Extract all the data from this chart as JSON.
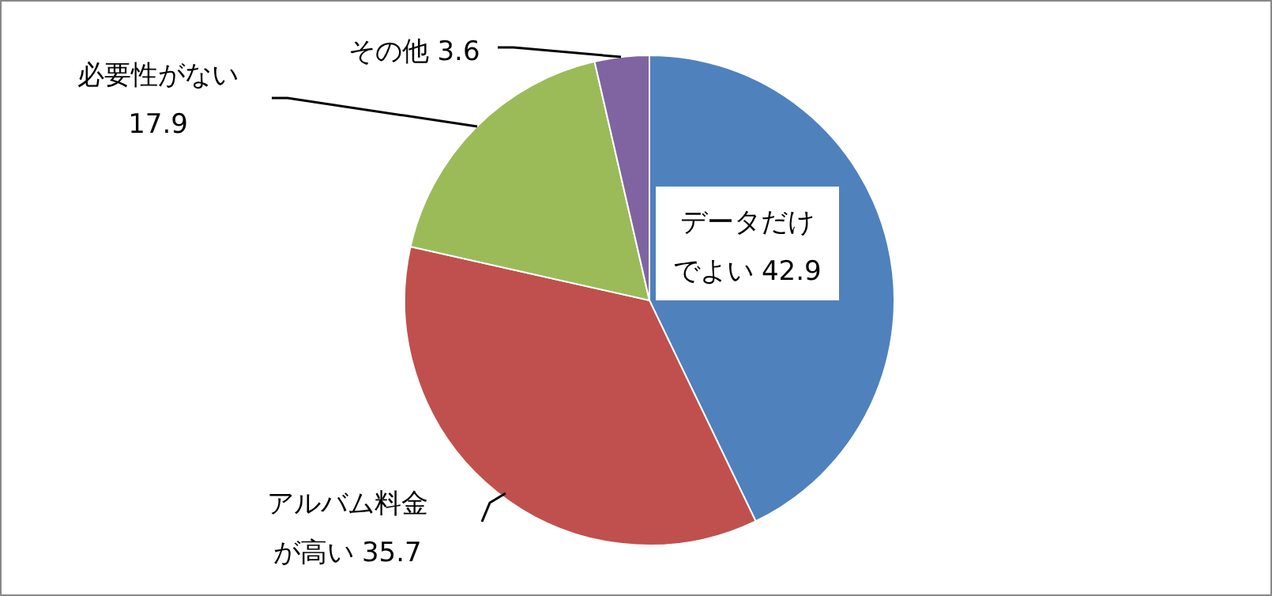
{
  "chart_data": {
    "type": "pie",
    "categories": [
      "データだけでよい",
      "アルバム料金が高い",
      "必要性がない",
      "その他"
    ],
    "values": [
      42.9,
      35.7,
      17.9,
      3.6
    ],
    "colors": [
      "#4f81bd",
      "#c0504d",
      "#9bbb59",
      "#8064a2"
    ],
    "data_labels": true
  }
}
